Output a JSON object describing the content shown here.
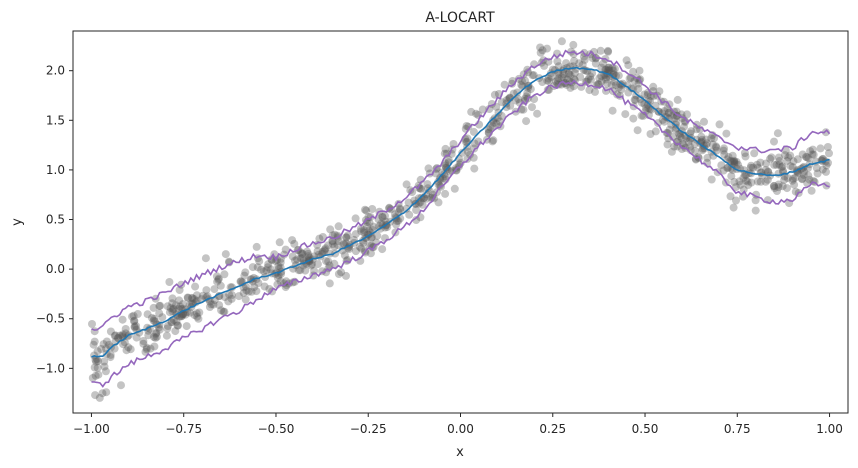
{
  "chart_data": {
    "type": "scatter",
    "title": "A-LOCART",
    "xlabel": "x",
    "ylabel": "y",
    "xlim": [
      -1.05,
      1.05
    ],
    "ylim": [
      -1.45,
      2.4
    ],
    "grid": false,
    "x_ticks": [
      -1.0,
      -0.75,
      -0.5,
      -0.25,
      0.0,
      0.25,
      0.5,
      0.75,
      1.0
    ],
    "x_tick_labels": [
      "−1.00",
      "−0.75",
      "−0.50",
      "−0.25",
      "0.00",
      "0.25",
      "0.50",
      "0.75",
      "1.00"
    ],
    "y_ticks": [
      -1.0,
      -0.5,
      0.0,
      0.5,
      1.0,
      1.5,
      2.0
    ],
    "y_tick_labels": [
      "−1.0",
      "−0.5",
      "0.0",
      "0.5",
      "1.0",
      "1.5",
      "2.0"
    ],
    "colors": {
      "points": "#555555",
      "mean_line": "#1f77b4",
      "band": "#9467bd",
      "frame": "#262626"
    },
    "series": [
      {
        "role": "mean-line",
        "kind": "line",
        "x": [
          -1.0,
          -0.97,
          -0.95,
          -0.9,
          -0.85,
          -0.8,
          -0.75,
          -0.7,
          -0.65,
          -0.6,
          -0.55,
          -0.5,
          -0.45,
          -0.4,
          -0.35,
          -0.3,
          -0.25,
          -0.2,
          -0.15,
          -0.1,
          -0.05,
          0.0,
          0.05,
          0.1,
          0.15,
          0.2,
          0.25,
          0.3,
          0.35,
          0.4,
          0.45,
          0.5,
          0.55,
          0.6,
          0.65,
          0.7,
          0.75,
          0.8,
          0.85,
          0.9,
          0.95,
          1.0
        ],
        "y": [
          -0.88,
          -0.88,
          -0.8,
          -0.67,
          -0.6,
          -0.52,
          -0.42,
          -0.33,
          -0.25,
          -0.17,
          -0.09,
          -0.04,
          0.03,
          0.1,
          0.15,
          0.24,
          0.33,
          0.45,
          0.58,
          0.75,
          0.95,
          1.17,
          1.37,
          1.56,
          1.75,
          1.9,
          1.99,
          2.03,
          2.02,
          1.97,
          1.84,
          1.7,
          1.54,
          1.39,
          1.26,
          1.13,
          1.0,
          0.96,
          0.94,
          0.98,
          1.06,
          1.1
        ]
      },
      {
        "role": "upper-band",
        "kind": "line",
        "x": [
          -1.0,
          -0.97,
          -0.95,
          -0.9,
          -0.85,
          -0.8,
          -0.75,
          -0.7,
          -0.65,
          -0.6,
          -0.55,
          -0.5,
          -0.45,
          -0.4,
          -0.35,
          -0.3,
          -0.25,
          -0.2,
          -0.15,
          -0.1,
          -0.05,
          0.0,
          0.05,
          0.1,
          0.15,
          0.2,
          0.25,
          0.3,
          0.35,
          0.4,
          0.45,
          0.5,
          0.55,
          0.6,
          0.65,
          0.7,
          0.75,
          0.8,
          0.85,
          0.9,
          0.95,
          1.0
        ],
        "y": [
          -0.6,
          -0.6,
          -0.5,
          -0.38,
          -0.32,
          -0.24,
          -0.14,
          -0.06,
          0.02,
          0.08,
          0.14,
          0.12,
          0.2,
          0.26,
          0.31,
          0.4,
          0.49,
          0.6,
          0.72,
          0.88,
          1.07,
          1.3,
          1.51,
          1.71,
          1.9,
          2.05,
          2.14,
          2.19,
          2.17,
          2.12,
          2.0,
          1.85,
          1.69,
          1.53,
          1.42,
          1.32,
          1.23,
          1.2,
          1.2,
          1.22,
          1.38,
          1.38
        ]
      },
      {
        "role": "lower-band",
        "kind": "line",
        "x": [
          -1.0,
          -0.97,
          -0.95,
          -0.9,
          -0.85,
          -0.8,
          -0.75,
          -0.7,
          -0.65,
          -0.6,
          -0.55,
          -0.5,
          -0.45,
          -0.4,
          -0.35,
          -0.3,
          -0.25,
          -0.2,
          -0.15,
          -0.1,
          -0.05,
          0.0,
          0.05,
          0.1,
          0.15,
          0.2,
          0.25,
          0.3,
          0.35,
          0.4,
          0.45,
          0.5,
          0.55,
          0.6,
          0.65,
          0.7,
          0.75,
          0.8,
          0.85,
          0.9,
          0.95,
          1.0
        ],
        "y": [
          -1.16,
          -1.16,
          -1.1,
          -0.96,
          -0.88,
          -0.8,
          -0.7,
          -0.6,
          -0.5,
          -0.42,
          -0.3,
          -0.2,
          -0.13,
          -0.06,
          0.0,
          0.08,
          0.18,
          0.3,
          0.43,
          0.6,
          0.82,
          1.04,
          1.24,
          1.42,
          1.6,
          1.75,
          1.84,
          1.88,
          1.87,
          1.82,
          1.68,
          1.55,
          1.39,
          1.24,
          1.1,
          0.95,
          0.78,
          0.72,
          0.68,
          0.7,
          0.85,
          0.85
        ]
      },
      {
        "role": "observations",
        "kind": "scatter",
        "n_points": 1000,
        "x_range": [
          -1.0,
          1.0
        ],
        "spread": 0.12,
        "highlighted": [
          {
            "x": -0.99,
            "y": -1.27
          },
          {
            "x": -0.97,
            "y": -1.25
          },
          {
            "x": -0.96,
            "y": -1.24
          },
          {
            "x": -0.92,
            "y": -1.17
          },
          {
            "x": -0.69,
            "y": 0.11
          },
          {
            "x": -0.49,
            "y": 0.27
          },
          {
            "x": 0.38,
            "y": 2.2
          },
          {
            "x": 0.4,
            "y": 2.19
          },
          {
            "x": 0.48,
            "y": 1.4
          },
          {
            "x": 0.74,
            "y": 0.62
          },
          {
            "x": 0.8,
            "y": 0.59
          },
          {
            "x": 0.86,
            "y": 1.37
          },
          {
            "x": 0.99,
            "y": 1.38
          }
        ]
      }
    ]
  }
}
